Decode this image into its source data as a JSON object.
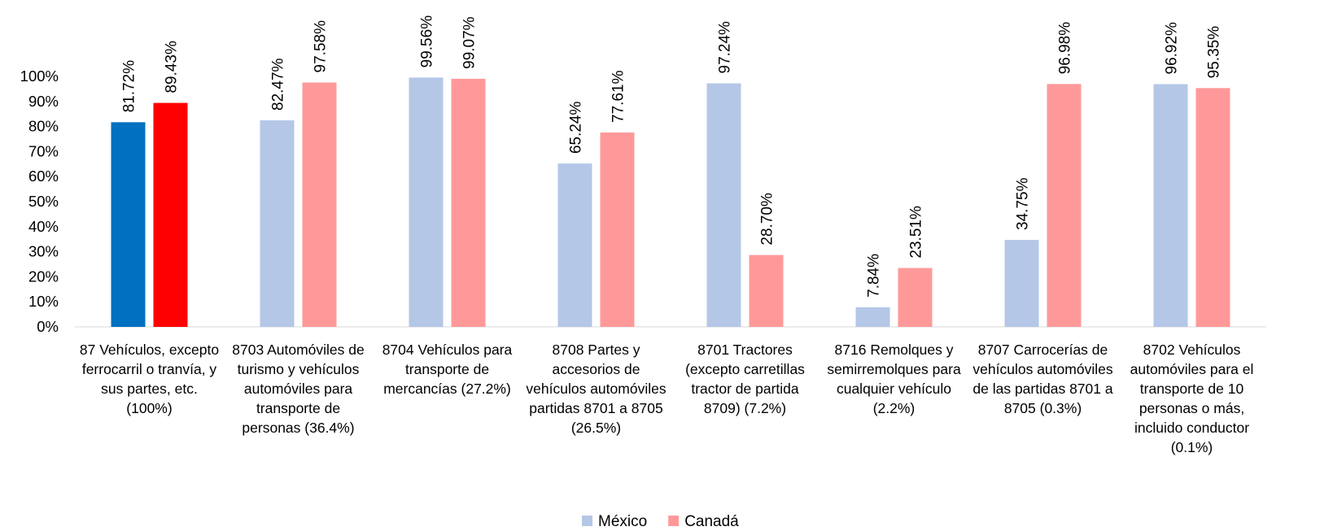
{
  "chart_data": {
    "type": "bar",
    "categories": [
      "87 Vehículos, excepto ferrocarril o tranvía, y sus partes, etc. (100%)",
      "8703 Automóviles de turismo y vehículos automóviles para transporte de personas (36.4%)",
      "8704 Vehículos para transporte de mercancías (27.2%)",
      "8708 Partes y accesorios de vehículos automóviles partidas 8701 a 8705 (26.5%)",
      "8701 Tractores (excepto carretillas tractor de partida 8709) (7.2%)",
      "8716 Remolques y semirremolques para cualquier vehículo (2.2%)",
      "8707 Carrocerías de vehículos automóviles de las partidas 8701 a 8705 (0.3%)",
      "8702 Vehículos automóviles para el transporte de 10 personas o más, incluido conductor (0.1%)"
    ],
    "series": [
      {
        "name": "México",
        "color": "#b4c7e7",
        "colors": [
          "#0070c0",
          "#b4c7e7",
          "#b4c7e7",
          "#b4c7e7",
          "#b4c7e7",
          "#b4c7e7",
          "#b4c7e7",
          "#b4c7e7"
        ],
        "values": [
          81.72,
          82.47,
          99.56,
          65.24,
          97.24,
          7.84,
          34.75,
          96.92
        ],
        "value_labels": [
          "81.72%",
          "82.47%",
          "99.56%",
          "65.24%",
          "97.24%",
          "7.84%",
          "34.75%",
          "96.92%"
        ]
      },
      {
        "name": "Canadá",
        "color": "#ff9999",
        "colors": [
          "#ff0000",
          "#ff9999",
          "#ff9999",
          "#ff9999",
          "#ff9999",
          "#ff9999",
          "#ff9999",
          "#ff9999"
        ],
        "values": [
          89.43,
          97.58,
          99.07,
          77.61,
          28.7,
          23.51,
          96.98,
          95.35
        ],
        "value_labels": [
          "89.43%",
          "97.58%",
          "99.07%",
          "77.61%",
          "28.70%",
          "23.51%",
          "96.98%",
          "95.35%"
        ]
      }
    ],
    "ylim": [
      0,
      100
    ],
    "yticks": [
      {
        "value": 0,
        "label": "0%"
      },
      {
        "value": 10,
        "label": "10%"
      },
      {
        "value": 20,
        "label": "20%"
      },
      {
        "value": 30,
        "label": "30%"
      },
      {
        "value": 40,
        "label": "40%"
      },
      {
        "value": 50,
        "label": "50%"
      },
      {
        "value": 60,
        "label": "60%"
      },
      {
        "value": 70,
        "label": "70%"
      },
      {
        "value": 80,
        "label": "80%"
      },
      {
        "value": 90,
        "label": "90%"
      },
      {
        "value": 100,
        "label": "100%"
      }
    ],
    "grid": false,
    "legend": "bottom"
  }
}
